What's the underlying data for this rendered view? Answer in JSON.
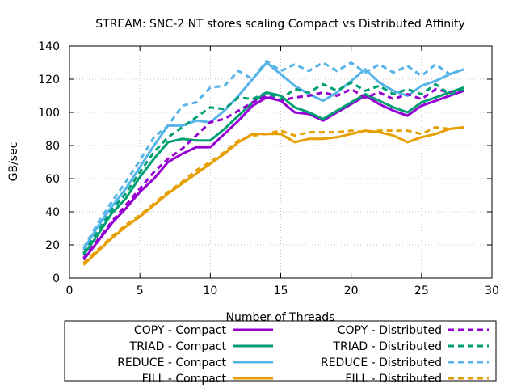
{
  "chart_data": {
    "type": "line",
    "title": "STREAM: SNC-2 NT stores scaling Compact vs Distributed Affinity",
    "xlabel": "Number of Threads",
    "ylabel": "GB/sec",
    "xlim": [
      0,
      30
    ],
    "ylim": [
      0,
      140
    ],
    "xticks": [
      "0",
      "5",
      "10",
      "15",
      "20",
      "25",
      "30"
    ],
    "yticks": [
      "0",
      "20",
      "40",
      "60",
      "80",
      "100",
      "120",
      "140"
    ],
    "grid": true,
    "legend_position": "bottom",
    "x": [
      1,
      2,
      3,
      4,
      5,
      6,
      7,
      8,
      9,
      10,
      11,
      12,
      13,
      14,
      15,
      16,
      17,
      18,
      19,
      20,
      21,
      22,
      23,
      24,
      25,
      26,
      27,
      28
    ],
    "series": [
      {
        "name": "COPY - Compact",
        "color": "#9400d3",
        "dash": "solid",
        "values": [
          11,
          22,
          33,
          42,
          52,
          60,
          70,
          75,
          79,
          79,
          87,
          95,
          104,
          109,
          107,
          100,
          99,
          95,
          100,
          105,
          110,
          105,
          101,
          98,
          104,
          107,
          110,
          113
        ]
      },
      {
        "name": "TRIAD - Compact",
        "color": "#009e73",
        "dash": "solid",
        "values": [
          14,
          26,
          39,
          48,
          61,
          72,
          82,
          84,
          83,
          83,
          90,
          98,
          106,
          112,
          110,
          103,
          100,
          96,
          101,
          106,
          111,
          107,
          103,
          100,
          106,
          109,
          112,
          115
        ]
      },
      {
        "name": "REDUCE - Compact",
        "color": "#56b4e9",
        "dash": "solid",
        "values": [
          17,
          31,
          43,
          54,
          67,
          80,
          92,
          92,
          95,
          94,
          101,
          110,
          120,
          130,
          123,
          116,
          111,
          107,
          112,
          119,
          126,
          118,
          113,
          110,
          116,
          119,
          123,
          126
        ]
      },
      {
        "name": "FILL - Compact",
        "color": "#e69f00",
        "dash": "solid",
        "values": [
          8,
          16,
          24,
          31,
          37,
          44,
          51,
          57,
          63,
          69,
          75,
          82,
          87,
          87,
          87,
          82,
          84,
          84,
          85,
          87,
          89,
          88,
          86,
          82,
          85,
          87,
          90,
          91
        ]
      },
      {
        "name": "COPY - Distributed",
        "color": "#9400d3",
        "dash": "dashed",
        "values": [
          12,
          23,
          34,
          44,
          54,
          64,
          72,
          78,
          86,
          94,
          96,
          101,
          106,
          110,
          107,
          109,
          110,
          112,
          110,
          114,
          109,
          112,
          108,
          111,
          108,
          114,
          112,
          113
        ]
      },
      {
        "name": "TRIAD - Distributed",
        "color": "#009e73",
        "dash": "dashed",
        "values": [
          15,
          28,
          41,
          51,
          64,
          76,
          85,
          91,
          97,
          103,
          102,
          109,
          108,
          112,
          108,
          114,
          112,
          117,
          113,
          118,
          113,
          116,
          111,
          114,
          111,
          117,
          111,
          114
        ]
      },
      {
        "name": "REDUCE - Distributed",
        "color": "#56b4e9",
        "dash": "dashed",
        "values": [
          18,
          33,
          46,
          58,
          71,
          85,
          92,
          104,
          106,
          115,
          116,
          125,
          120,
          131,
          125,
          129,
          125,
          130,
          125,
          130,
          124,
          129,
          124,
          128,
          122,
          129,
          123,
          126
        ]
      },
      {
        "name": "FILL - Distributed",
        "color": "#e69f00",
        "dash": "dashed",
        "values": [
          9,
          17,
          25,
          32,
          38,
          45,
          52,
          58,
          65,
          70,
          76,
          83,
          86,
          87,
          89,
          86,
          88,
          88,
          88,
          89,
          88,
          89,
          89,
          89,
          87,
          91,
          90,
          91
        ]
      }
    ]
  }
}
